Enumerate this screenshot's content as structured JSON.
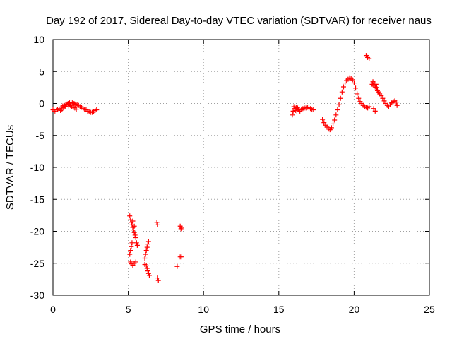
{
  "chart_data": {
    "type": "scatter",
    "title": "Day 192 of 2017, Sidereal Day-to-day VTEC variation (SDTVAR) for receiver naus",
    "xlabel": "GPS time / hours",
    "ylabel": "SDTVAR / TECUs",
    "xlim": [
      0,
      25
    ],
    "ylim": [
      -30,
      10
    ],
    "x_ticks": [
      0,
      5,
      10,
      15,
      20,
      25
    ],
    "x_tick_labels": [
      "0",
      "5",
      "10",
      "15",
      "20",
      "25"
    ],
    "y_ticks": [
      10,
      5,
      0,
      -5,
      -10,
      -15,
      -20,
      -25,
      -30
    ],
    "y_tick_labels": [
      "10",
      "5",
      "0",
      "-5",
      "-10",
      "-15",
      "-20",
      "-25",
      "-30"
    ],
    "grid": true,
    "marker": "+",
    "color": "#ff0000",
    "series": [
      {
        "name": "SDTVAR",
        "points": [
          [
            0.0,
            -1.0
          ],
          [
            0.1,
            -1.2
          ],
          [
            0.2,
            -1.3
          ],
          [
            0.3,
            -1.0
          ],
          [
            0.4,
            -0.8
          ],
          [
            0.5,
            -1.1
          ],
          [
            0.55,
            -0.6
          ],
          [
            0.6,
            -0.9
          ],
          [
            0.65,
            -0.4
          ],
          [
            0.7,
            -0.7
          ],
          [
            0.75,
            -0.3
          ],
          [
            0.8,
            -0.5
          ],
          [
            0.85,
            -0.2
          ],
          [
            0.9,
            -0.1
          ],
          [
            1.0,
            0.0
          ],
          [
            1.05,
            -0.4
          ],
          [
            1.1,
            0.1
          ],
          [
            1.15,
            -0.3
          ],
          [
            1.2,
            0.2
          ],
          [
            1.25,
            -0.5
          ],
          [
            1.3,
            0.1
          ],
          [
            1.35,
            -0.6
          ],
          [
            1.4,
            0.0
          ],
          [
            1.45,
            -0.7
          ],
          [
            1.5,
            -0.1
          ],
          [
            1.55,
            -0.9
          ],
          [
            1.6,
            -0.2
          ],
          [
            1.7,
            -0.3
          ],
          [
            1.8,
            -0.5
          ],
          [
            1.9,
            -0.6
          ],
          [
            2.0,
            -0.8
          ],
          [
            2.1,
            -0.9
          ],
          [
            2.2,
            -1.0
          ],
          [
            2.3,
            -1.2
          ],
          [
            2.4,
            -1.3
          ],
          [
            2.5,
            -1.4
          ],
          [
            2.6,
            -1.4
          ],
          [
            2.7,
            -1.3
          ],
          [
            2.8,
            -1.1
          ],
          [
            2.9,
            -1.0
          ],
          [
            5.1,
            -17.6
          ],
          [
            5.15,
            -18.2
          ],
          [
            5.2,
            -18.6
          ],
          [
            5.25,
            -19.0
          ],
          [
            5.3,
            -19.4
          ],
          [
            5.35,
            -19.8
          ],
          [
            5.4,
            -20.2
          ],
          [
            5.45,
            -20.6
          ],
          [
            5.5,
            -21.0
          ],
          [
            5.55,
            -21.8
          ],
          [
            5.6,
            -22.2
          ],
          [
            5.15,
            -23.0
          ],
          [
            5.2,
            -22.4
          ],
          [
            5.25,
            -21.8
          ],
          [
            5.1,
            -23.6
          ],
          [
            5.15,
            -24.8
          ],
          [
            5.2,
            -25.1
          ],
          [
            5.3,
            -25.3
          ],
          [
            5.4,
            -25.0
          ],
          [
            5.5,
            -24.8
          ],
          [
            5.3,
            -18.4
          ],
          [
            5.4,
            -19.2
          ],
          [
            6.1,
            -24.2
          ],
          [
            6.15,
            -23.6
          ],
          [
            6.2,
            -23.0
          ],
          [
            6.25,
            -22.5
          ],
          [
            6.3,
            -22.0
          ],
          [
            6.35,
            -21.6
          ],
          [
            6.2,
            -25.4
          ],
          [
            6.25,
            -25.8
          ],
          [
            6.3,
            -26.2
          ],
          [
            6.35,
            -26.6
          ],
          [
            6.4,
            -26.9
          ],
          [
            6.1,
            -25.2
          ],
          [
            6.9,
            -18.6
          ],
          [
            6.95,
            -19.0
          ],
          [
            6.95,
            -27.3
          ],
          [
            7.0,
            -27.7
          ],
          [
            8.25,
            -25.5
          ],
          [
            8.45,
            -24.0
          ],
          [
            8.55,
            -24.0
          ],
          [
            8.45,
            -19.2
          ],
          [
            8.5,
            -19.6
          ],
          [
            8.55,
            -19.4
          ],
          [
            15.9,
            -1.8
          ],
          [
            15.95,
            -1.2
          ],
          [
            16.0,
            -0.5
          ],
          [
            16.05,
            -0.8
          ],
          [
            16.1,
            -1.1
          ],
          [
            16.15,
            -0.6
          ],
          [
            16.2,
            -1.3
          ],
          [
            16.25,
            -0.7
          ],
          [
            16.3,
            -1.0
          ],
          [
            16.4,
            -1.2
          ],
          [
            16.5,
            -1.0
          ],
          [
            16.6,
            -0.8
          ],
          [
            16.7,
            -0.7
          ],
          [
            16.8,
            -0.7
          ],
          [
            16.9,
            -0.6
          ],
          [
            17.0,
            -0.7
          ],
          [
            17.1,
            -0.8
          ],
          [
            17.2,
            -0.9
          ],
          [
            17.3,
            -1.0
          ],
          [
            17.9,
            -2.5
          ],
          [
            18.0,
            -3.0
          ],
          [
            18.1,
            -3.4
          ],
          [
            18.2,
            -3.7
          ],
          [
            18.3,
            -4.0
          ],
          [
            18.4,
            -4.1
          ],
          [
            18.5,
            -3.8
          ],
          [
            18.6,
            -3.2
          ],
          [
            18.7,
            -2.6
          ],
          [
            18.8,
            -1.8
          ],
          [
            18.9,
            -1.0
          ],
          [
            19.0,
            -0.2
          ],
          [
            19.1,
            0.8
          ],
          [
            19.2,
            1.8
          ],
          [
            19.3,
            2.6
          ],
          [
            19.4,
            3.2
          ],
          [
            19.5,
            3.6
          ],
          [
            19.6,
            3.8
          ],
          [
            19.7,
            4.0
          ],
          [
            19.8,
            3.9
          ],
          [
            19.9,
            3.7
          ],
          [
            20.0,
            3.2
          ],
          [
            20.1,
            2.4
          ],
          [
            20.2,
            1.5
          ],
          [
            20.3,
            0.8
          ],
          [
            20.4,
            0.3
          ],
          [
            20.5,
            0.0
          ],
          [
            20.6,
            -0.3
          ],
          [
            20.7,
            -0.5
          ],
          [
            20.8,
            -0.6
          ],
          [
            20.9,
            -0.7
          ],
          [
            21.0,
            -0.5
          ],
          [
            20.8,
            7.5
          ],
          [
            20.9,
            7.2
          ],
          [
            21.0,
            7.0
          ],
          [
            21.2,
            3.0
          ],
          [
            21.25,
            3.4
          ],
          [
            21.3,
            2.8
          ],
          [
            21.35,
            3.2
          ],
          [
            21.4,
            2.6
          ],
          [
            21.45,
            3.0
          ],
          [
            21.5,
            2.5
          ],
          [
            21.55,
            2.0
          ],
          [
            21.6,
            1.8
          ],
          [
            21.7,
            1.5
          ],
          [
            21.8,
            1.2
          ],
          [
            21.9,
            0.8
          ],
          [
            22.0,
            0.4
          ],
          [
            22.1,
            0.0
          ],
          [
            22.2,
            -0.3
          ],
          [
            22.3,
            -0.5
          ],
          [
            22.4,
            -0.2
          ],
          [
            22.5,
            0.1
          ],
          [
            22.6,
            0.3
          ],
          [
            22.7,
            0.4
          ],
          [
            22.8,
            0.2
          ],
          [
            22.85,
            -0.3
          ],
          [
            21.3,
            -0.8
          ],
          [
            21.4,
            -1.2
          ]
        ]
      }
    ]
  }
}
